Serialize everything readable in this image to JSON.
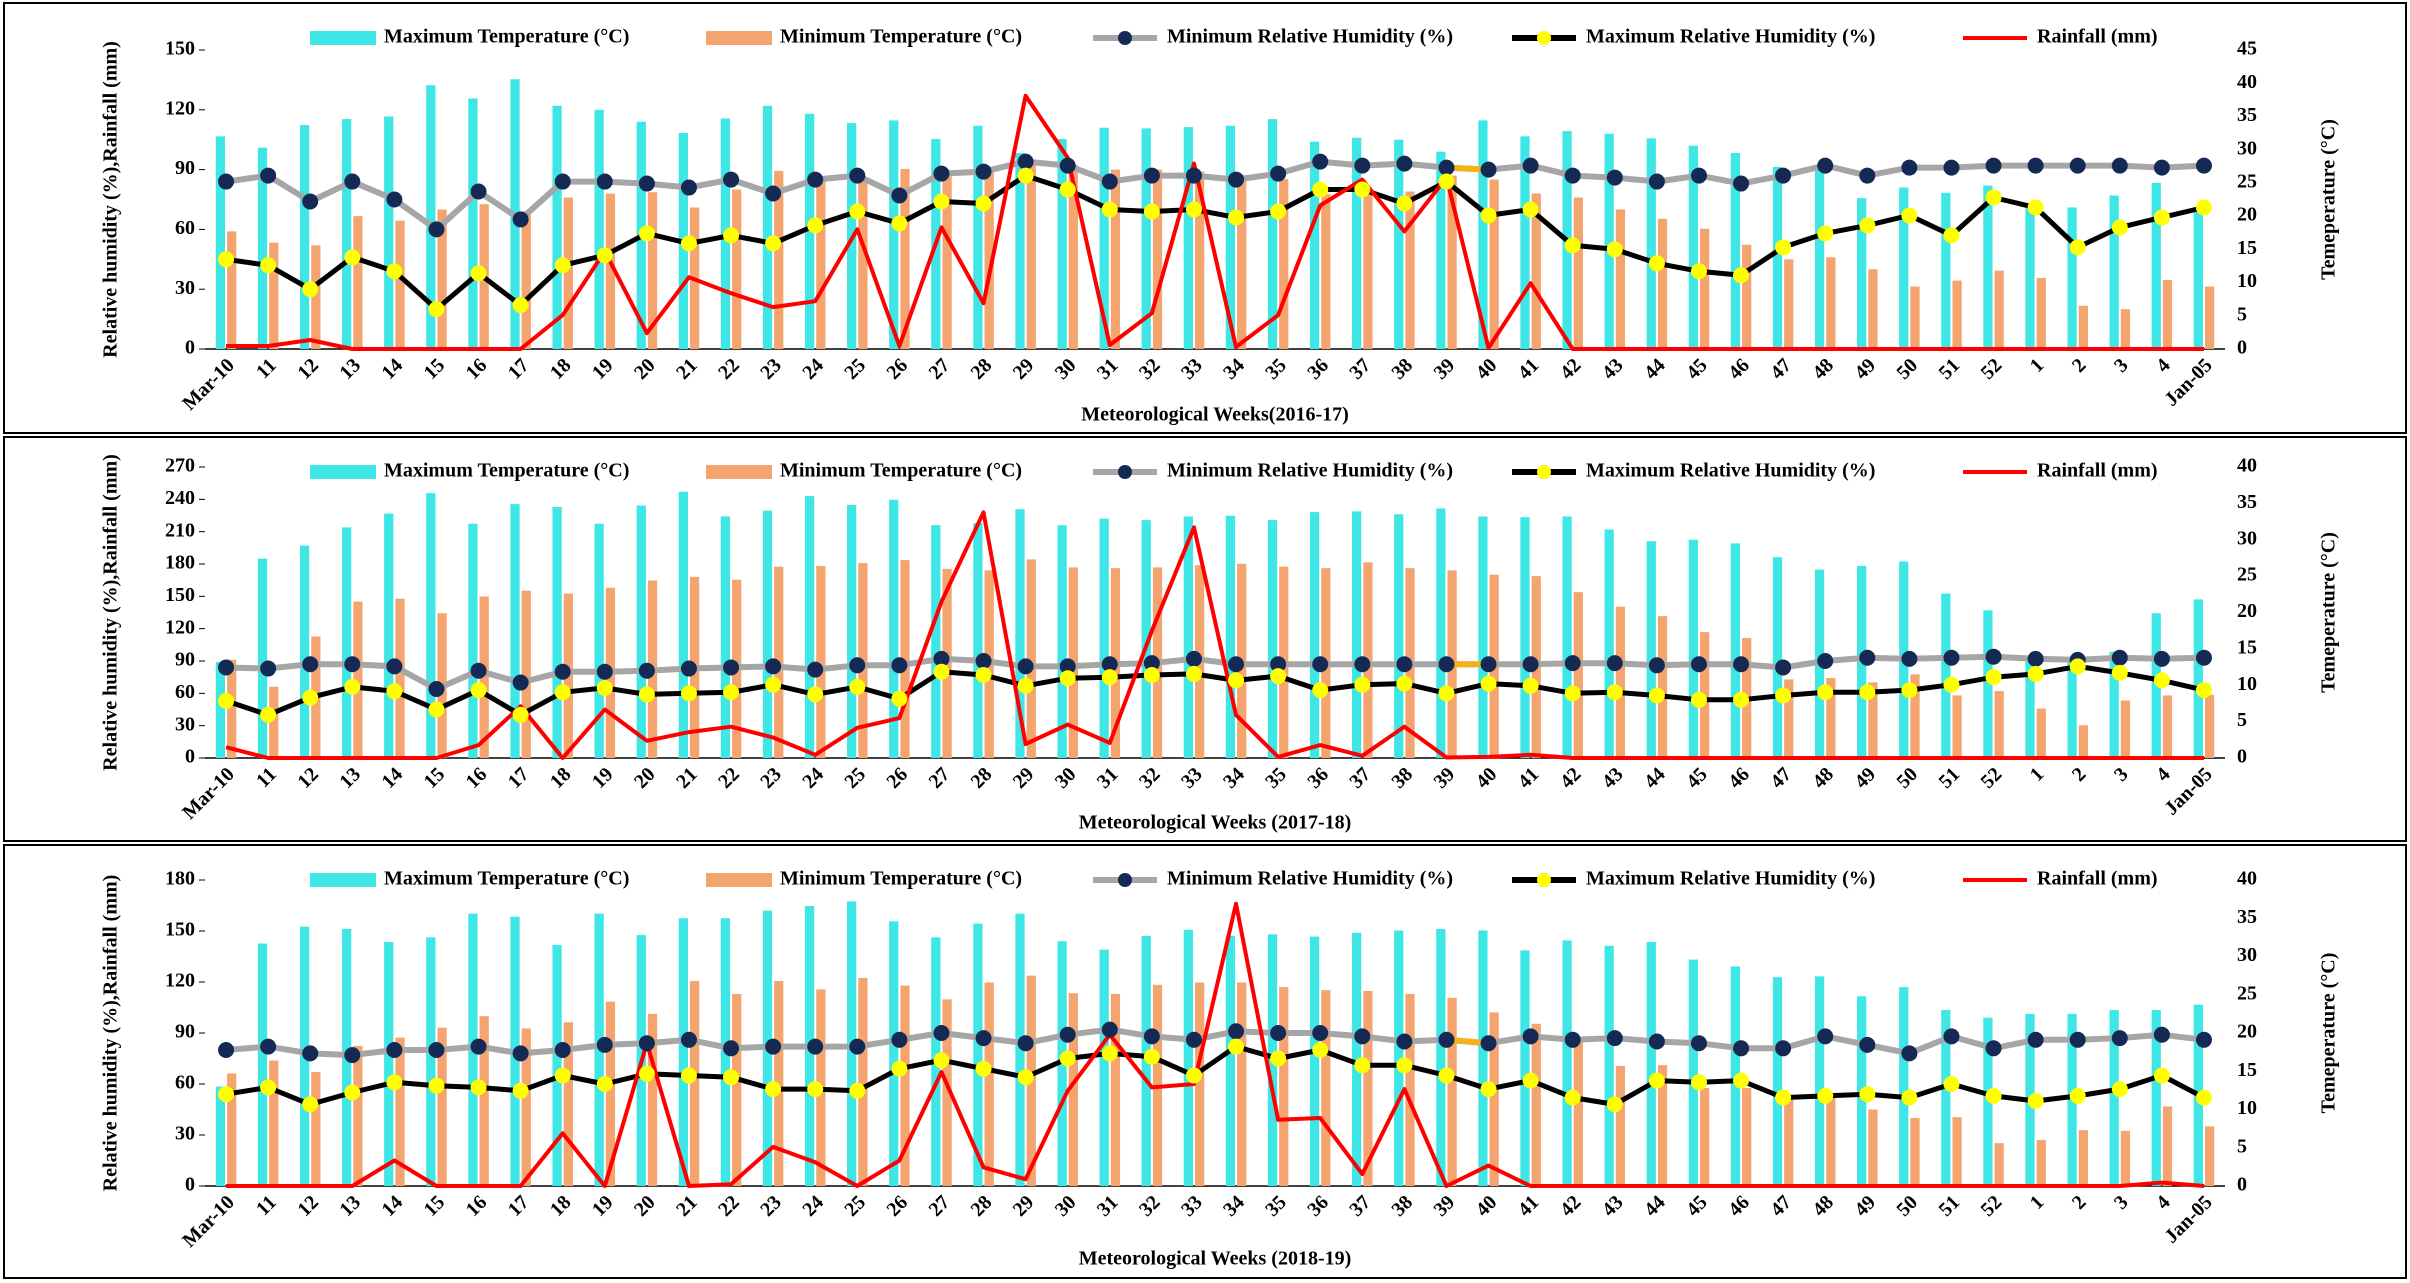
{
  "legend": {
    "max_temp": "Maximum Temperature (°C)",
    "min_temp": "Minimum Temperature (°C)",
    "min_rh": "Minimum Relative Humidity (%)",
    "max_rh": "Maximum Relative Humidity (%)",
    "rainfall": "Rainfall (mm)"
  },
  "colors": {
    "max_temp": "#3ee6e6",
    "min_temp": "#f4a46e",
    "min_rh_line": "#a6a6a6",
    "min_rh_marker": "#142a54",
    "max_rh_line": "#000000",
    "max_rh_marker": "#ffff00",
    "rainfall": "#ff0000",
    "gap_segment": "#f2b318"
  },
  "chart_data": [
    {
      "type": "bar",
      "title": "",
      "xlabel": "Meteorological Weeks(2016-17)",
      "ylabel_left": "Relative humidity (%),Rainfall (mm)",
      "ylabel_right": "Temeperature (°C)",
      "y_left_lim": [
        0,
        150
      ],
      "y_left_ticks": [
        "0",
        "30",
        "60",
        "90",
        "120",
        "150"
      ],
      "y_right_lim": [
        0,
        45
      ],
      "y_right_ticks": [
        "0",
        "5",
        "10",
        "15",
        "20",
        "25",
        "30",
        "35",
        "40",
        "45"
      ],
      "categories": [
        "Mar-10",
        "11",
        "12",
        "13",
        "14",
        "15",
        "16",
        "17",
        "18",
        "19",
        "20",
        "21",
        "22",
        "23",
        "24",
        "25",
        "26",
        "27",
        "28",
        "29",
        "30",
        "31",
        "32",
        "33",
        "34",
        "35",
        "36",
        "37",
        "38",
        "39",
        "40",
        "41",
        "42",
        "43",
        "44",
        "45",
        "46",
        "47",
        "48",
        "49",
        "50",
        "51",
        "52",
        "1",
        "2",
        "3",
        "4",
        "Jan-05"
      ],
      "series": [
        {
          "name": "Maximum Temperature (°C)",
          "axis": "right",
          "values": [
            32,
            30.3,
            33.7,
            34.6,
            35,
            39.7,
            37.7,
            40.6,
            36.6,
            36,
            34.2,
            32.5,
            34.7,
            36.6,
            35.4,
            34,
            34.4,
            31.6,
            33.6,
            29.5,
            31.6,
            33.3,
            33.2,
            33.4,
            33.6,
            34.6,
            31.2,
            31.8,
            31.5,
            29.7,
            34.4,
            32,
            32.8,
            32.4,
            31.7,
            30.6,
            29.5,
            27.4,
            27.6,
            22.7,
            24.3,
            23.5,
            24.6,
            21.2,
            21.3,
            23.1,
            25,
            21.2
          ]
        },
        {
          "name": "Minimum Temperature (°C)",
          "axis": "right",
          "values": [
            17.7,
            16,
            15.6,
            20,
            19.3,
            21,
            21.8,
            20.7,
            22.8,
            23.4,
            23.6,
            21.3,
            24,
            26.8,
            25.4,
            25.3,
            27.1,
            26.6,
            27.3,
            27.8,
            27.7,
            27,
            27,
            26.7,
            26.2,
            25.6,
            23.3,
            23.7,
            23.7,
            26.1,
            25.5,
            23.4,
            22.8,
            21,
            19.6,
            18.1,
            15.7,
            13.5,
            13.8,
            12,
            9.4,
            10.3,
            11.8,
            10.7,
            6.5,
            6,
            10.4,
            9.4
          ]
        },
        {
          "name": "Minimum Relative Humidity (%)",
          "axis": "left",
          "values": [
            84,
            87,
            74,
            84,
            75,
            60,
            79,
            65,
            84,
            84,
            83,
            81,
            85,
            78,
            85,
            87,
            77,
            88,
            89,
            94,
            92,
            84,
            87,
            87,
            85,
            88,
            94,
            92,
            93,
            91,
            90,
            92,
            87,
            86,
            84,
            87,
            83,
            87,
            92,
            87,
            91,
            91,
            92,
            92,
            92,
            92,
            91,
            92
          ]
        },
        {
          "name": "Maximum Relative Humidity (%)",
          "axis": "left",
          "values": [
            45,
            42,
            30,
            46,
            39,
            20,
            38,
            22,
            42,
            47,
            58,
            53,
            57,
            53,
            62,
            69,
            63,
            74,
            73,
            87,
            80,
            70,
            69,
            70,
            66,
            69,
            80,
            80,
            73,
            84,
            67,
            70,
            52,
            50,
            43,
            39,
            37,
            51,
            58,
            62,
            67,
            57,
            76,
            71,
            51,
            61,
            66,
            71
          ]
        },
        {
          "name": "Rainfall (mm)",
          "axis": "left",
          "values": [
            1.5,
            1.5,
            4.5,
            0,
            0,
            0,
            0,
            0,
            17,
            49,
            8,
            36,
            28,
            21,
            24,
            60,
            1.5,
            61,
            23,
            127,
            96,
            2,
            18,
            93,
            1,
            17,
            72,
            85,
            59,
            86,
            0.5,
            33,
            0,
            0,
            0,
            0,
            0,
            0,
            0,
            0,
            0,
            0,
            0,
            0,
            0,
            0,
            0,
            0
          ]
        }
      ]
    },
    {
      "type": "bar",
      "title": "",
      "xlabel": "Meteorological Weeks (2017-18)",
      "ylabel_left": "Relative humidity (%),Rainfall (mm)",
      "ylabel_right": "Temeperature (°C)",
      "y_left_lim": [
        0,
        270
      ],
      "y_left_ticks": [
        "0",
        "30",
        "60",
        "90",
        "120",
        "150",
        "180",
        "210",
        "240",
        "270"
      ],
      "y_right_lim": [
        0,
        40
      ],
      "y_right_ticks": [
        "0",
        "5",
        "10",
        "15",
        "20",
        "25",
        "30",
        "35",
        "40"
      ],
      "categories": [
        "Mar-10",
        "11",
        "12",
        "13",
        "14",
        "15",
        "16",
        "17",
        "18",
        "19",
        "20",
        "21",
        "22",
        "23",
        "24",
        "25",
        "26",
        "27",
        "28",
        "29",
        "30",
        "31",
        "32",
        "33",
        "34",
        "35",
        "36",
        "37",
        "38",
        "39",
        "40",
        "41",
        "42",
        "43",
        "44",
        "45",
        "46",
        "47",
        "48",
        "49",
        "50",
        "51",
        "52",
        "1",
        "2",
        "3",
        "4",
        "Jan-05"
      ],
      "series": [
        {
          "name": "Maximum Temperature (°C)",
          "axis": "right",
          "values": [
            13.2,
            27.4,
            29.2,
            31.7,
            33.6,
            36.4,
            32.2,
            34.9,
            34.5,
            32.2,
            34.7,
            36.6,
            33.2,
            34,
            36,
            34.8,
            35.5,
            32,
            32.3,
            34.2,
            32,
            32.9,
            32.7,
            33.2,
            33.3,
            32.7,
            33.8,
            33.9,
            33.5,
            34.3,
            33.2,
            33.1,
            33.2,
            31.4,
            29.8,
            30,
            29.5,
            27.6,
            25.9,
            26.4,
            27,
            22.6,
            20.3,
            14.1,
            13.7,
            14.6,
            19.9,
            21.8
          ]
        },
        {
          "name": "Minimum Temperature (°C)",
          "axis": "right",
          "values": [
            13.5,
            9.8,
            16.7,
            21.5,
            21.9,
            19.9,
            22.2,
            23,
            22.6,
            23.4,
            24.4,
            24.9,
            24.5,
            26.3,
            26.4,
            26.8,
            27.2,
            26,
            25.8,
            27.3,
            26.2,
            26.1,
            26.2,
            26.5,
            26.7,
            26.3,
            26.1,
            26.9,
            26.1,
            25.8,
            25.2,
            25,
            22.8,
            20.8,
            19.5,
            17.3,
            16.5,
            10.8,
            11,
            10.4,
            11.5,
            8.6,
            9.2,
            6.8,
            4.5,
            7.9,
            8.6,
            8.7
          ]
        },
        {
          "name": "Minimum Relative Humidity (%)",
          "axis": "left",
          "values": [
            84,
            83,
            87,
            87,
            85,
            64,
            81,
            70,
            80,
            80,
            81,
            83,
            84,
            85,
            82,
            86,
            86,
            92,
            90,
            85,
            85,
            87,
            88,
            92,
            87,
            87,
            87,
            87,
            87,
            87,
            87,
            87,
            88,
            88,
            86,
            87,
            87,
            84,
            90,
            93,
            92,
            93,
            94,
            92,
            91,
            93,
            92,
            93
          ]
        },
        {
          "name": "Maximum Relative Humidity (%)",
          "axis": "left",
          "values": [
            53,
            40,
            56,
            66,
            62,
            45,
            63,
            40,
            61,
            65,
            59,
            60,
            61,
            68,
            59,
            66,
            55,
            80,
            77,
            67,
            74,
            75,
            77,
            78,
            72,
            76,
            63,
            68,
            69,
            60,
            69,
            67,
            60,
            61,
            58,
            54,
            54,
            58,
            61,
            61,
            63,
            68,
            75,
            78,
            85,
            79,
            72,
            63
          ]
        },
        {
          "name": "Rainfall (mm)",
          "axis": "left",
          "values": [
            10,
            0,
            0,
            0,
            0,
            0,
            12,
            48,
            0,
            45,
            16,
            24,
            29,
            19,
            3,
            28,
            37,
            145,
            228,
            13,
            31,
            14,
            118,
            214,
            40,
            1,
            12,
            2,
            29,
            0.5,
            1,
            3,
            0,
            0,
            0,
            0,
            0,
            0,
            0,
            0,
            0,
            0,
            0,
            0,
            0,
            0,
            0,
            0
          ]
        }
      ]
    },
    {
      "type": "bar",
      "title": "",
      "xlabel": "Meteorological Weeks (2018-19)",
      "ylabel_left": "Relative humidity (%),Rainfall (mm)",
      "ylabel_right": "Temeperature (°C)",
      "y_left_lim": [
        0,
        180
      ],
      "y_left_ticks": [
        "0",
        "30",
        "60",
        "90",
        "120",
        "150",
        "180"
      ],
      "y_right_lim": [
        0,
        40
      ],
      "y_right_ticks": [
        "0",
        "5",
        "10",
        "15",
        "20",
        "25",
        "30",
        "35",
        "40"
      ],
      "categories": [
        "Mar-10",
        "11",
        "12",
        "13",
        "14",
        "15",
        "16",
        "17",
        "18",
        "19",
        "20",
        "21",
        "22",
        "23",
        "24",
        "25",
        "26",
        "27",
        "28",
        "29",
        "30",
        "31",
        "32",
        "33",
        "34",
        "35",
        "36",
        "37",
        "38",
        "39",
        "40",
        "41",
        "42",
        "43",
        "44",
        "45",
        "46",
        "47",
        "48",
        "49",
        "50",
        "51",
        "52",
        "1",
        "2",
        "3",
        "4",
        "Jan-05"
      ],
      "series": [
        {
          "name": "Maximum Temperature (°C)",
          "axis": "right",
          "values": [
            13,
            31.7,
            33.9,
            33.6,
            31.9,
            32.5,
            35.6,
            35.2,
            31.5,
            35.6,
            32.8,
            35,
            35,
            36,
            36.6,
            37.2,
            34.6,
            32.5,
            34.3,
            35.6,
            32,
            30.9,
            32.7,
            33.5,
            32.7,
            32.9,
            32.6,
            33.1,
            33.4,
            33.6,
            33.4,
            30.8,
            32.1,
            31.4,
            31.9,
            29.6,
            28.7,
            27.3,
            27.4,
            24.8,
            26,
            23,
            22,
            22.5,
            22.5,
            23,
            23,
            23.7
          ]
        },
        {
          "name": "Minimum Temperature (°C)",
          "axis": "right",
          "values": [
            14.7,
            16.4,
            14.9,
            18.3,
            19.4,
            20.7,
            22.2,
            20.6,
            21.4,
            24.1,
            22.5,
            26.8,
            25.1,
            26.8,
            25.7,
            27.2,
            26.2,
            24.4,
            26.6,
            27.5,
            25.2,
            25.1,
            26.3,
            26.6,
            26.6,
            26,
            25.6,
            25.5,
            25.1,
            24.6,
            22.7,
            21.2,
            19.5,
            15.7,
            15.8,
            12.8,
            12.8,
            11.3,
            11.5,
            10,
            8.9,
            9,
            5.6,
            6,
            7.3,
            7.2,
            10.4,
            7.8
          ]
        },
        {
          "name": "Minimum Relative Humidity (%)",
          "axis": "left",
          "values": [
            80,
            82,
            78,
            77,
            80,
            80,
            82,
            78,
            80,
            83,
            84,
            86,
            81,
            82,
            82,
            82,
            86,
            90,
            87,
            84,
            89,
            92,
            88,
            86,
            91,
            90,
            90,
            88,
            85,
            86,
            84,
            88,
            86,
            87,
            85,
            84,
            81,
            81,
            88,
            83,
            78,
            88,
            81,
            86,
            86,
            87,
            89,
            86
          ]
        },
        {
          "name": "Maximum Relative Humidity (%)",
          "axis": "left",
          "values": [
            54,
            58,
            48,
            55,
            61,
            59,
            58,
            56,
            65,
            60,
            66,
            65,
            64,
            57,
            57,
            56,
            69,
            74,
            69,
            64,
            75,
            78,
            76,
            65,
            82,
            75,
            80,
            71,
            71,
            65,
            57,
            62,
            52,
            48,
            62,
            61,
            62,
            52,
            53,
            54,
            52,
            60,
            53,
            50,
            53,
            57,
            65,
            52
          ]
        },
        {
          "name": "Rainfall (mm)",
          "axis": "left",
          "values": [
            0,
            0,
            0,
            0,
            15,
            0,
            0,
            0,
            31,
            0,
            84,
            0,
            1,
            23,
            14,
            0,
            15,
            67,
            11,
            4,
            56,
            89,
            58,
            60,
            166,
            39,
            40,
            7,
            57,
            0,
            12,
            0,
            0,
            0,
            0,
            0,
            0,
            0,
            0,
            0,
            0,
            0,
            0,
            0,
            0,
            0,
            2,
            0
          ]
        }
      ]
    }
  ]
}
